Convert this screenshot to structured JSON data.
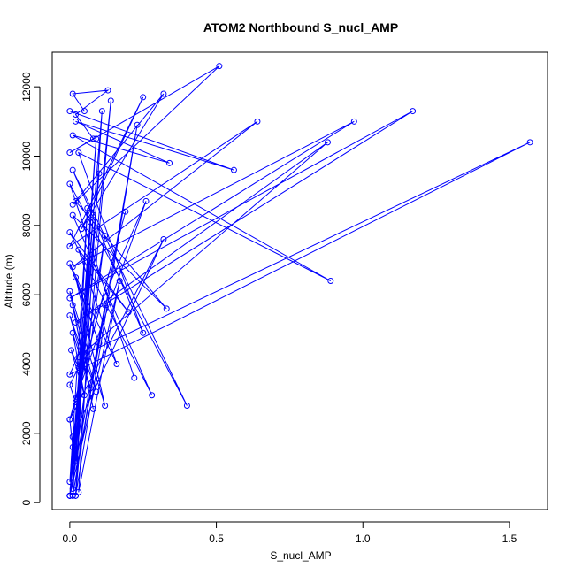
{
  "colors": {
    "series": "#0000ff",
    "axis": "#000000",
    "background": "#ffffff"
  },
  "chart_data": {
    "type": "line",
    "title": "ATOM2 Northbound S_nucl_AMP",
    "xlabel": "S_nucl_AMP",
    "ylabel": "Altitude (m)",
    "xlim": [
      -0.06,
      1.63
    ],
    "ylim": [
      -200,
      13000
    ],
    "xticks": [
      0,
      0.5,
      1.0,
      1.5
    ],
    "xtick_labels": [
      "0.0",
      "0.5",
      "1.0",
      "1.5"
    ],
    "yticks": [
      0,
      2000,
      4000,
      6000,
      8000,
      10000,
      12000
    ],
    "ytick_labels": [
      "0",
      "2000",
      "4000",
      "6000",
      "8000",
      "10000",
      "12000"
    ],
    "marker": "open-circle",
    "grid": false,
    "legend": "none",
    "series": [
      {
        "x": [
          0.0,
          0.01,
          0.0,
          0.02,
          0.0,
          0.03,
          0.005,
          0.05,
          0.01,
          0.07,
          0.0,
          0.09,
          0.01,
          0.08,
          0.0,
          0.12,
          0.02,
          0.1,
          0.0,
          0.16,
          0.03,
          0.2,
          0.0,
          0.28,
          0.01,
          0.33,
          0.02,
          0.22,
          0.0,
          0.4,
          0.01,
          0.25,
          0.03,
          0.89,
          0.01,
          0.34,
          0.02,
          0.56,
          0.0,
          0.05,
          0.01,
          0.13,
          0.02,
          0.08,
          0.0,
          0.51,
          0.01,
          0.32,
          0.04,
          0.25,
          0.0,
          0.64,
          0.01,
          0.97,
          0.0,
          1.17,
          0.02,
          0.88,
          0.03,
          1.57,
          0.0,
          0.26,
          0.02,
          0.19,
          0.0,
          0.32,
          0.01,
          0.12,
          0.02,
          0.08,
          0.0,
          0.06,
          0.01,
          0.1,
          0.0,
          0.14,
          0.02,
          0.23,
          0.01,
          0.09,
          0.0,
          0.11,
          0.03,
          0.17,
          0.0,
          0.12,
          0.01,
          0.07,
          0.02,
          0.04,
          0.0
        ],
        "y": [
          200,
          1600,
          2400,
          2900,
          3400,
          3900,
          4400,
          3100,
          4900,
          3300,
          5400,
          3200,
          5700,
          2700,
          6100,
          2800,
          6500,
          4600,
          6900,
          4000,
          7300,
          5500,
          7800,
          3100,
          8300,
          5600,
          8700,
          3600,
          9200,
          2800,
          9600,
          4900,
          10100,
          6400,
          10600,
          9800,
          11000,
          9600,
          11300,
          11300,
          11800,
          11900,
          11200,
          10500,
          10100,
          12600,
          8600,
          11800,
          7900,
          11700,
          7400,
          11000,
          6800,
          11000,
          5900,
          11300,
          5200,
          10400,
          4200,
          10400,
          3700,
          8700,
          3000,
          8400,
          2400,
          7600,
          1900,
          7700,
          1200,
          8300,
          600,
          8500,
          400,
          9500,
          200,
          11600,
          200,
          10900,
          200,
          10500,
          200,
          11300,
          300,
          6400,
          200,
          5700,
          200,
          8100,
          200,
          4000,
          200
        ]
      }
    ]
  }
}
